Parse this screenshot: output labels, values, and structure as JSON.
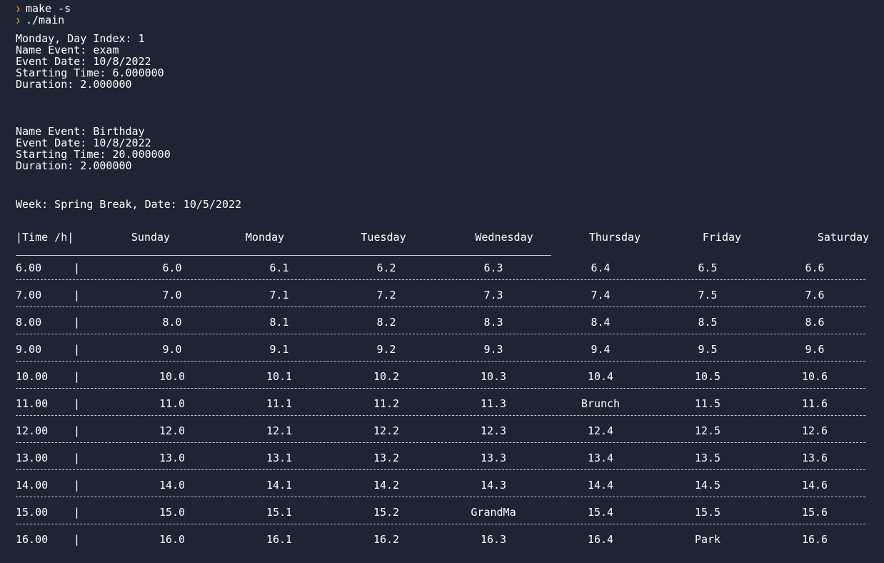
{
  "terminal": {
    "commands": [
      {
        "prompt_icon": "chevron-right-icon",
        "text": "make -s"
      },
      {
        "prompt_icon": "chevron-right-icon",
        "text": "./main"
      }
    ],
    "day_line": "Monday, Day Index: 1",
    "events": [
      {
        "name": "Name Event: exam",
        "date": "Event Date: 10/8/2022",
        "start": "Starting Time: 6.000000",
        "duration": "Duration: 2.000000"
      },
      {
        "name": "Name Event: Birthday",
        "date": "Event Date: 10/8/2022",
        "start": "Starting Time: 20.000000",
        "duration": "Duration: 2.000000"
      }
    ],
    "week_line": "Week: Spring Break, Date: 10/5/2022",
    "colors": {
      "background": "#1d2433",
      "text": "#ffffff",
      "prompt": "#d08a2e"
    }
  },
  "schedule": {
    "time_header": "|Time /h|",
    "days": [
      "Sunday",
      "Monday",
      "Tuesday",
      "Wednesday",
      "Thursday",
      "Friday",
      "Saturday"
    ],
    "bar": "|",
    "rows": [
      {
        "time": "6.00",
        "cells": [
          "6.0",
          "6.1",
          "6.2",
          "6.3",
          "6.4",
          "6.5",
          "6.6"
        ]
      },
      {
        "time": "7.00",
        "cells": [
          "7.0",
          "7.1",
          "7.2",
          "7.3",
          "7.4",
          "7.5",
          "7.6"
        ]
      },
      {
        "time": "8.00",
        "cells": [
          "8.0",
          "8.1",
          "8.2",
          "8.3",
          "8.4",
          "8.5",
          "8.6"
        ]
      },
      {
        "time": "9.00",
        "cells": [
          "9.0",
          "9.1",
          "9.2",
          "9.3",
          "9.4",
          "9.5",
          "9.6"
        ]
      },
      {
        "time": "10.00",
        "cells": [
          "10.0",
          "10.1",
          "10.2",
          "10.3",
          "10.4",
          "10.5",
          "10.6"
        ]
      },
      {
        "time": "11.00",
        "cells": [
          "11.0",
          "11.1",
          "11.2",
          "11.3",
          "Brunch",
          "11.5",
          "11.6"
        ]
      },
      {
        "time": "12.00",
        "cells": [
          "12.0",
          "12.1",
          "12.2",
          "12.3",
          "12.4",
          "12.5",
          "12.6"
        ]
      },
      {
        "time": "13.00",
        "cells": [
          "13.0",
          "13.1",
          "13.2",
          "13.3",
          "13.4",
          "13.5",
          "13.6"
        ]
      },
      {
        "time": "14.00",
        "cells": [
          "14.0",
          "14.1",
          "14.2",
          "14.3",
          "14.4",
          "14.5",
          "14.6"
        ]
      },
      {
        "time": "15.00",
        "cells": [
          "15.0",
          "15.1",
          "15.2",
          "GrandMa",
          "15.4",
          "15.5",
          "15.6"
        ]
      },
      {
        "time": "16.00",
        "cells": [
          "16.0",
          "16.1",
          "16.2",
          "16.3",
          "16.4",
          "Park",
          "16.6"
        ]
      }
    ]
  }
}
